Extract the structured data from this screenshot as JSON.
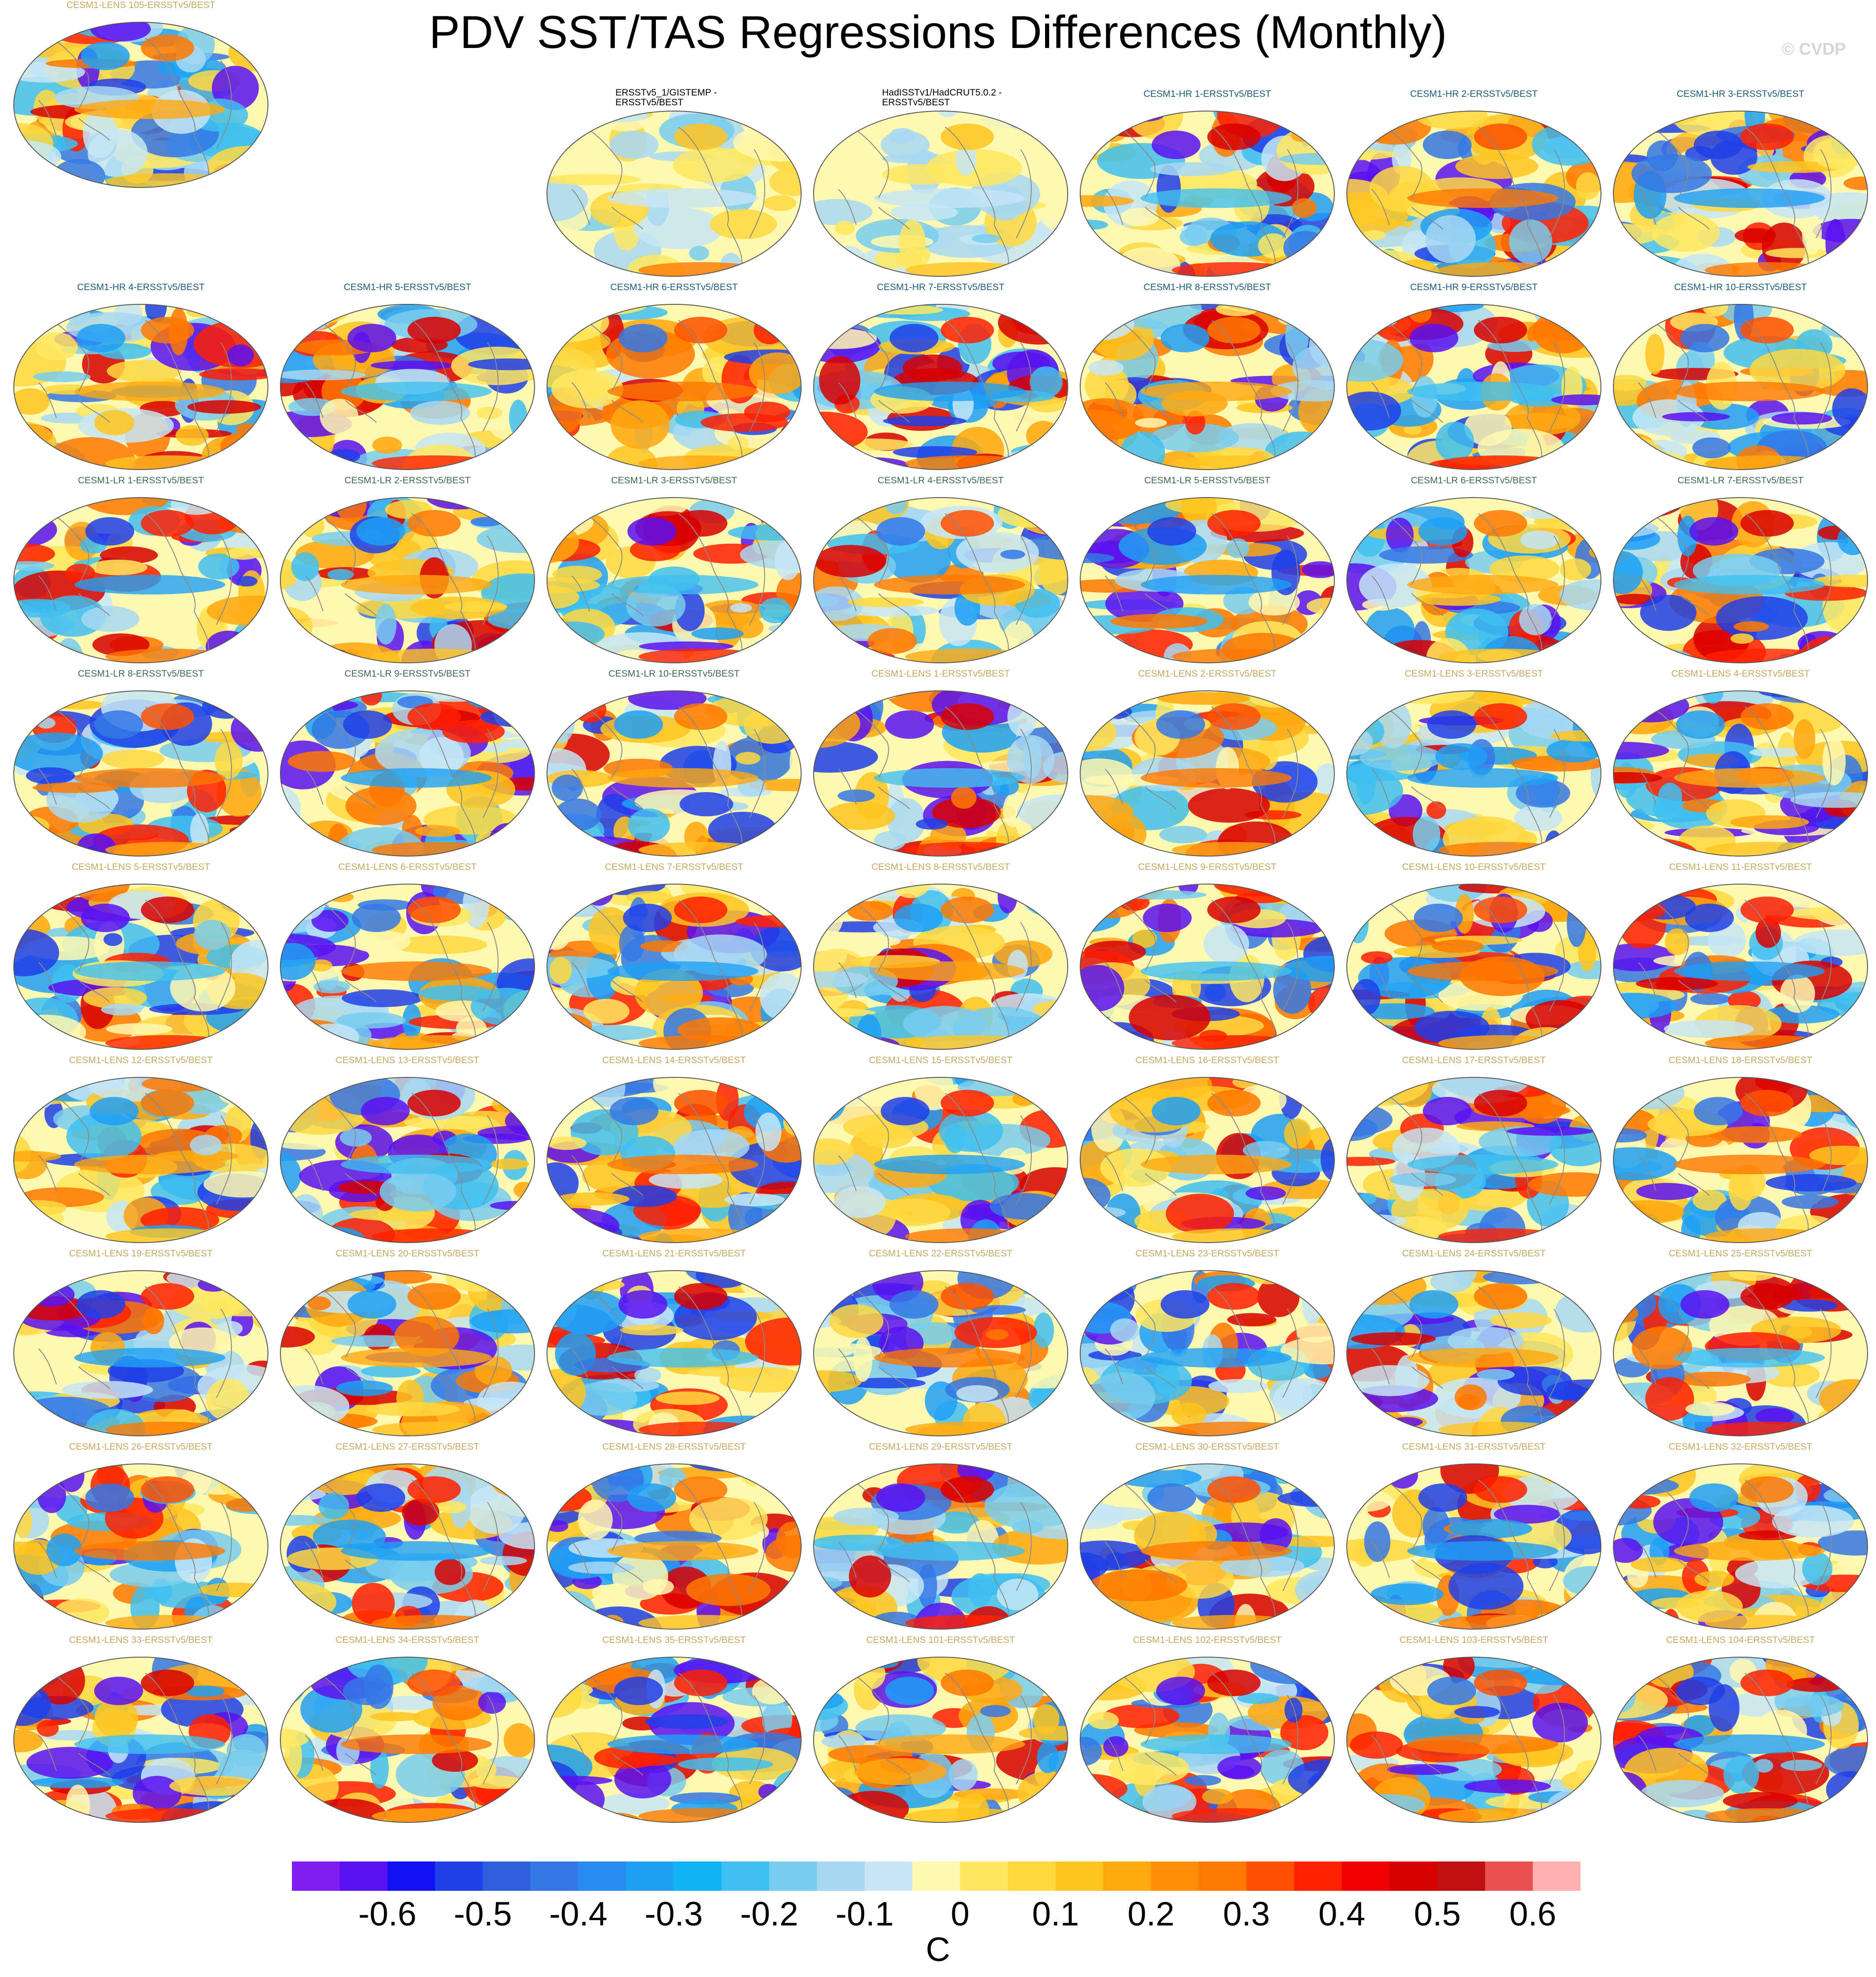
{
  "title": "PDV SST/TAS Regressions Differences (Monthly)",
  "copyright": "© CVDP",
  "colors": {
    "obs_label": "#000000",
    "hr_label": "#1d5b7a",
    "lr_label": "#3e6a4e",
    "lens_label": "#c8a860",
    "land_outline": "#8a8a8a"
  },
  "panels": [
    {
      "label": "ERSSTv5_1/GISTEMP -\nERSSTv5/BEST",
      "group": "obs"
    },
    {
      "label": "HadISSTv1/HadCRUT5.0.2 -\nERSSTv5/BEST",
      "group": "obs"
    },
    {
      "label": "CESM1-HR 1-ERSSTv5/BEST",
      "group": "hr"
    },
    {
      "label": "CESM1-HR 2-ERSSTv5/BEST",
      "group": "hr"
    },
    {
      "label": "CESM1-HR 3-ERSSTv5/BEST",
      "group": "hr"
    },
    {
      "label": "CESM1-HR 4-ERSSTv5/BEST",
      "group": "hr"
    },
    {
      "label": "CESM1-HR 5-ERSSTv5/BEST",
      "group": "hr"
    },
    {
      "label": "CESM1-HR 6-ERSSTv5/BEST",
      "group": "hr"
    },
    {
      "label": "CESM1-HR 7-ERSSTv5/BEST",
      "group": "hr"
    },
    {
      "label": "CESM1-HR 8-ERSSTv5/BEST",
      "group": "hr"
    },
    {
      "label": "CESM1-HR 9-ERSSTv5/BEST",
      "group": "hr"
    },
    {
      "label": "CESM1-HR 10-ERSSTv5/BEST",
      "group": "hr"
    },
    {
      "label": "CESM1-LR 1-ERSSTv5/BEST",
      "group": "lr"
    },
    {
      "label": "CESM1-LR 2-ERSSTv5/BEST",
      "group": "lr"
    },
    {
      "label": "CESM1-LR 3-ERSSTv5/BEST",
      "group": "lr"
    },
    {
      "label": "CESM1-LR 4-ERSSTv5/BEST",
      "group": "lr"
    },
    {
      "label": "CESM1-LR 5-ERSSTv5/BEST",
      "group": "lr"
    },
    {
      "label": "CESM1-LR 6-ERSSTv5/BEST",
      "group": "lr"
    },
    {
      "label": "CESM1-LR 7-ERSSTv5/BEST",
      "group": "lr"
    },
    {
      "label": "CESM1-LR 8-ERSSTv5/BEST",
      "group": "lr"
    },
    {
      "label": "CESM1-LR 9-ERSSTv5/BEST",
      "group": "lr"
    },
    {
      "label": "CESM1-LR 10-ERSSTv5/BEST",
      "group": "lr"
    },
    {
      "label": "CESM1-LENS 1-ERSSTv5/BEST",
      "group": "lens"
    },
    {
      "label": "CESM1-LENS 2-ERSSTv5/BEST",
      "group": "lens"
    },
    {
      "label": "CESM1-LENS 3-ERSSTv5/BEST",
      "group": "lens"
    },
    {
      "label": "CESM1-LENS 4-ERSSTv5/BEST",
      "group": "lens"
    },
    {
      "label": "CESM1-LENS 5-ERSSTv5/BEST",
      "group": "lens"
    },
    {
      "label": "CESM1-LENS 6-ERSSTv5/BEST",
      "group": "lens"
    },
    {
      "label": "CESM1-LENS 7-ERSSTv5/BEST",
      "group": "lens"
    },
    {
      "label": "CESM1-LENS 8-ERSSTv5/BEST",
      "group": "lens"
    },
    {
      "label": "CESM1-LENS 9-ERSSTv5/BEST",
      "group": "lens"
    },
    {
      "label": "CESM1-LENS 10-ERSSTv5/BEST",
      "group": "lens"
    },
    {
      "label": "CESM1-LENS 11-ERSSTv5/BEST",
      "group": "lens"
    },
    {
      "label": "CESM1-LENS 12-ERSSTv5/BEST",
      "group": "lens"
    },
    {
      "label": "CESM1-LENS 13-ERSSTv5/BEST",
      "group": "lens"
    },
    {
      "label": "CESM1-LENS 14-ERSSTv5/BEST",
      "group": "lens"
    },
    {
      "label": "CESM1-LENS 15-ERSSTv5/BEST",
      "group": "lens"
    },
    {
      "label": "CESM1-LENS 16-ERSSTv5/BEST",
      "group": "lens"
    },
    {
      "label": "CESM1-LENS 17-ERSSTv5/BEST",
      "group": "lens"
    },
    {
      "label": "CESM1-LENS 18-ERSSTv5/BEST",
      "group": "lens"
    },
    {
      "label": "CESM1-LENS 19-ERSSTv5/BEST",
      "group": "lens"
    },
    {
      "label": "CESM1-LENS 20-ERSSTv5/BEST",
      "group": "lens"
    },
    {
      "label": "CESM1-LENS 21-ERSSTv5/BEST",
      "group": "lens"
    },
    {
      "label": "CESM1-LENS 22-ERSSTv5/BEST",
      "group": "lens"
    },
    {
      "label": "CESM1-LENS 23-ERSSTv5/BEST",
      "group": "lens"
    },
    {
      "label": "CESM1-LENS 24-ERSSTv5/BEST",
      "group": "lens"
    },
    {
      "label": "CESM1-LENS 25-ERSSTv5/BEST",
      "group": "lens"
    },
    {
      "label": "CESM1-LENS 26-ERSSTv5/BEST",
      "group": "lens"
    },
    {
      "label": "CESM1-LENS 27-ERSSTv5/BEST",
      "group": "lens"
    },
    {
      "label": "CESM1-LENS 28-ERSSTv5/BEST",
      "group": "lens"
    },
    {
      "label": "CESM1-LENS 29-ERSSTv5/BEST",
      "group": "lens"
    },
    {
      "label": "CESM1-LENS 30-ERSSTv5/BEST",
      "group": "lens"
    },
    {
      "label": "CESM1-LENS 31-ERSSTv5/BEST",
      "group": "lens"
    },
    {
      "label": "CESM1-LENS 32-ERSSTv5/BEST",
      "group": "lens"
    },
    {
      "label": "CESM1-LENS 33-ERSSTv5/BEST",
      "group": "lens"
    },
    {
      "label": "CESM1-LENS 34-ERSSTv5/BEST",
      "group": "lens"
    },
    {
      "label": "CESM1-LENS 35-ERSSTv5/BEST",
      "group": "lens"
    },
    {
      "label": "CESM1-LENS 101-ERSSTv5/BEST",
      "group": "lens"
    },
    {
      "label": "CESM1-LENS 102-ERSSTv5/BEST",
      "group": "lens"
    },
    {
      "label": "CESM1-LENS 103-ERSSTv5/BEST",
      "group": "lens"
    },
    {
      "label": "CESM1-LENS 104-ERSSTv5/BEST",
      "group": "lens"
    },
    {
      "label": "CESM1-LENS 105-ERSSTv5/BEST",
      "group": "lens"
    }
  ],
  "colorbar": {
    "units": "C",
    "colors": [
      "#7f1ff0",
      "#5a10f0",
      "#1010f5",
      "#2040e8",
      "#3060e0",
      "#3478e6",
      "#2a8cf0",
      "#1ea0f5",
      "#10b4f5",
      "#40c0f0",
      "#78ccee",
      "#a8d8f2",
      "#c6e6f6",
      "#fff8b0",
      "#ffe860",
      "#ffd840",
      "#ffc420",
      "#ffa810",
      "#ff9008",
      "#ff7800",
      "#ff5000",
      "#ff2000",
      "#f00000",
      "#d80000",
      "#c01010",
      "#e85050",
      "#ffb0b0"
    ],
    "tick_labels": [
      "-0.6",
      "-0.5",
      "-0.4",
      "-0.3",
      "-0.2",
      "-0.1",
      "0",
      "0.1",
      "0.2",
      "0.3",
      "0.4",
      "0.5",
      "0.6"
    ]
  }
}
